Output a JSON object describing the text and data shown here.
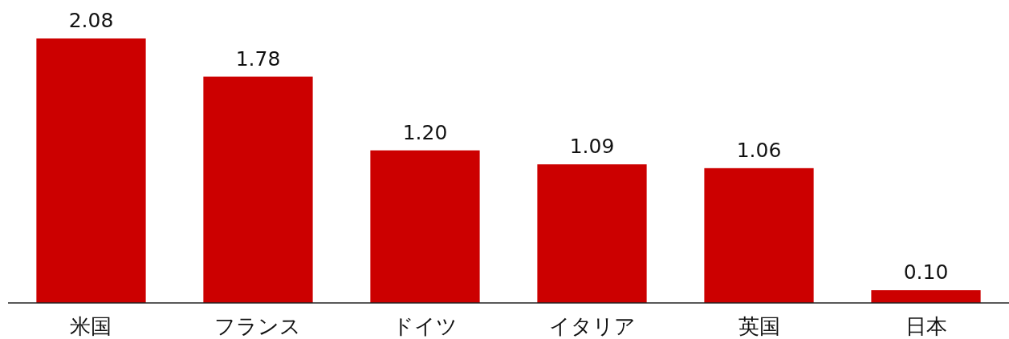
{
  "chart_data": {
    "type": "bar",
    "categories": [
      "米国",
      "フランス",
      "ドイツ",
      "イタリア",
      "英国",
      "日本"
    ],
    "values": [
      2.08,
      1.78,
      1.2,
      1.09,
      1.06,
      0.1
    ],
    "value_labels": [
      "2.08",
      "1.78",
      "1.20",
      "1.09",
      "1.06",
      "0.10"
    ],
    "color": "#cc0000"
  }
}
